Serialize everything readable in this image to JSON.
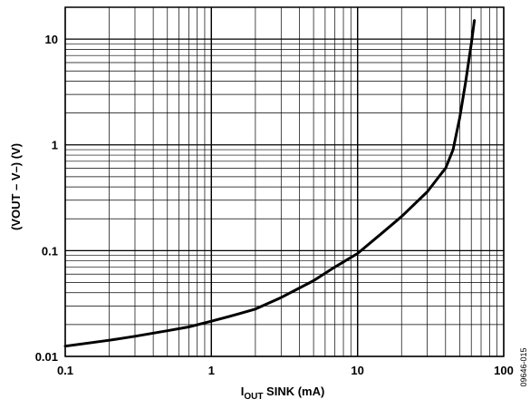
{
  "chart_data": {
    "type": "line",
    "x_scale": "log",
    "y_scale": "log",
    "xlim": [
      0.1,
      100
    ],
    "ylim": [
      0.01,
      20
    ],
    "xlabel_main": "I",
    "xlabel_sub": "OUT",
    "xlabel_rest": " SINK (mA)",
    "ylabel": "(VOUT – V–) (V)",
    "x_ticks": [
      {
        "value": 0.1,
        "label": "0.1"
      },
      {
        "value": 1,
        "label": "1"
      },
      {
        "value": 10,
        "label": "10"
      },
      {
        "value": 100,
        "label": "100"
      }
    ],
    "y_ticks": [
      {
        "value": 0.01,
        "label": "0.01"
      },
      {
        "value": 0.1,
        "label": "0.1"
      },
      {
        "value": 1,
        "label": "1"
      },
      {
        "value": 10,
        "label": "10"
      }
    ],
    "grid": true,
    "code_label": "09646-015",
    "series": [
      {
        "color": "#000000",
        "x": [
          0.1,
          0.2,
          0.3,
          0.5,
          0.7,
          1,
          1.5,
          2,
          3,
          5,
          7,
          10,
          15,
          20,
          30,
          38,
          40,
          45,
          50,
          55,
          60,
          63
        ],
        "y": [
          0.0125,
          0.0142,
          0.0155,
          0.0175,
          0.019,
          0.0215,
          0.025,
          0.028,
          0.036,
          0.052,
          0.07,
          0.094,
          0.15,
          0.21,
          0.36,
          0.55,
          0.6,
          0.9,
          1.8,
          4.0,
          9.0,
          15.0
        ]
      }
    ]
  }
}
